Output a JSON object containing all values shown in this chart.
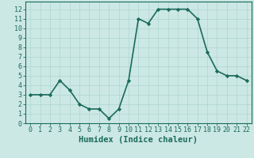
{
  "x": [
    0,
    1,
    2,
    3,
    4,
    5,
    6,
    7,
    8,
    9,
    10,
    11,
    12,
    13,
    14,
    15,
    16,
    17,
    18,
    19,
    20,
    21,
    22
  ],
  "y": [
    3.0,
    3.0,
    3.0,
    4.5,
    3.5,
    2.0,
    1.5,
    1.5,
    0.5,
    1.5,
    4.5,
    11.0,
    10.5,
    12.0,
    12.0,
    12.0,
    12.0,
    11.0,
    7.5,
    5.5,
    5.0,
    5.0,
    4.5
  ],
  "line_color": "#1a6b5a",
  "bg_color": "#cce8e4",
  "grid_color": "#b2d8d2",
  "xlabel": "Humidex (Indice chaleur)",
  "xlim": [
    -0.5,
    22.5
  ],
  "ylim": [
    0,
    12.8
  ],
  "yticks": [
    0,
    1,
    2,
    3,
    4,
    5,
    6,
    7,
    8,
    9,
    10,
    11,
    12
  ],
  "xticks": [
    0,
    1,
    2,
    3,
    4,
    5,
    6,
    7,
    8,
    9,
    10,
    11,
    12,
    13,
    14,
    15,
    16,
    17,
    18,
    19,
    20,
    21,
    22
  ],
  "marker": "D",
  "marker_size": 2.2,
  "line_width": 1.2,
  "tick_fontsize": 6.0,
  "label_fontsize": 7.5
}
